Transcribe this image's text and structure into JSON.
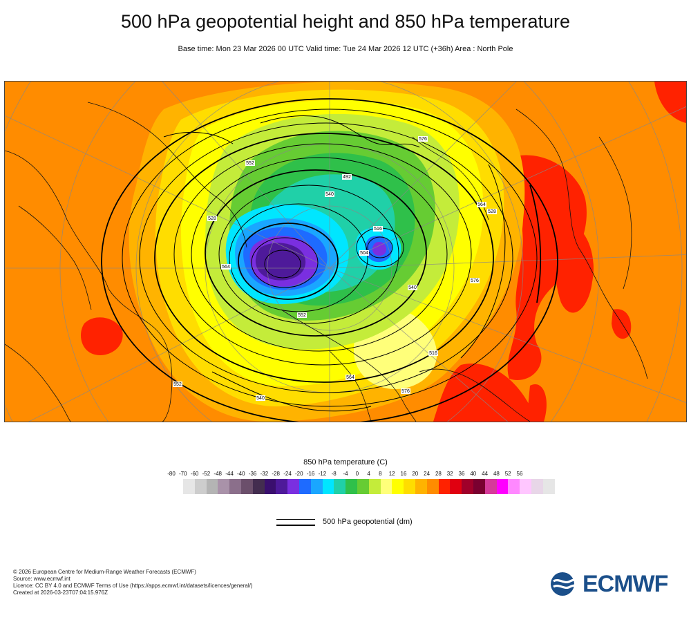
{
  "header": {
    "title": "500 hPa geopotential height and 850 hPa temperature",
    "subtitle": "Base time: Mon 23 Mar 2026 00 UTC Valid time: Tue 24 Mar 2026 12 UTC (+36h) Area : North Pole"
  },
  "map": {
    "contour_labels": [
      "552",
      "576",
      "564",
      "528",
      "540",
      "516",
      "504",
      "492",
      "552",
      "564",
      "576",
      "528",
      "540",
      "516",
      "564",
      "576",
      "552",
      "540"
    ]
  },
  "legend": {
    "temperature_title": "850 hPa temperature (C)",
    "ticks": [
      "-80",
      "-70",
      "-60",
      "-52",
      "-48",
      "-44",
      "-40",
      "-36",
      "-32",
      "-28",
      "-24",
      "-20",
      "-16",
      "-12",
      "-8",
      "-4",
      "0",
      "4",
      "8",
      "12",
      "16",
      "20",
      "24",
      "28",
      "32",
      "36",
      "40",
      "44",
      "48",
      "52",
      "56"
    ],
    "colors": [
      "#e6e6e6",
      "#cdcdcd",
      "#b4b4b4",
      "#a992a9",
      "#8b6f8b",
      "#6b4f6b",
      "#432d4f",
      "#3a0f6e",
      "#4e1a9a",
      "#7a2fe0",
      "#1e6bff",
      "#1aa6ff",
      "#00e6ff",
      "#20d0a8",
      "#2fc04a",
      "#66cc33",
      "#c4ec3a",
      "#ffff7a",
      "#ffff00",
      "#ffdd00",
      "#ffb300",
      "#ff8c00",
      "#ff2200",
      "#e00010",
      "#a0002a",
      "#7a0030",
      "#d63a9a",
      "#ff00ff",
      "#ff88ff",
      "#ffc6ff",
      "#e8d6e8",
      "#e6e6e6"
    ],
    "geopotential_label": "500 hPa geopotential (dm)"
  },
  "footer": {
    "lines": [
      "© 2026 European Centre for Medium-Range Weather Forecasts (ECMWF)",
      "Source: www.ecmwf.int",
      "Licence: CC BY 4.0 and ECMWF Terms of Use (https://apps.ecmwf.int/datasets/licences/general/)",
      "Created at 2026-03-23T07:04:15.976Z"
    ],
    "logo_text": "ECMWF"
  }
}
